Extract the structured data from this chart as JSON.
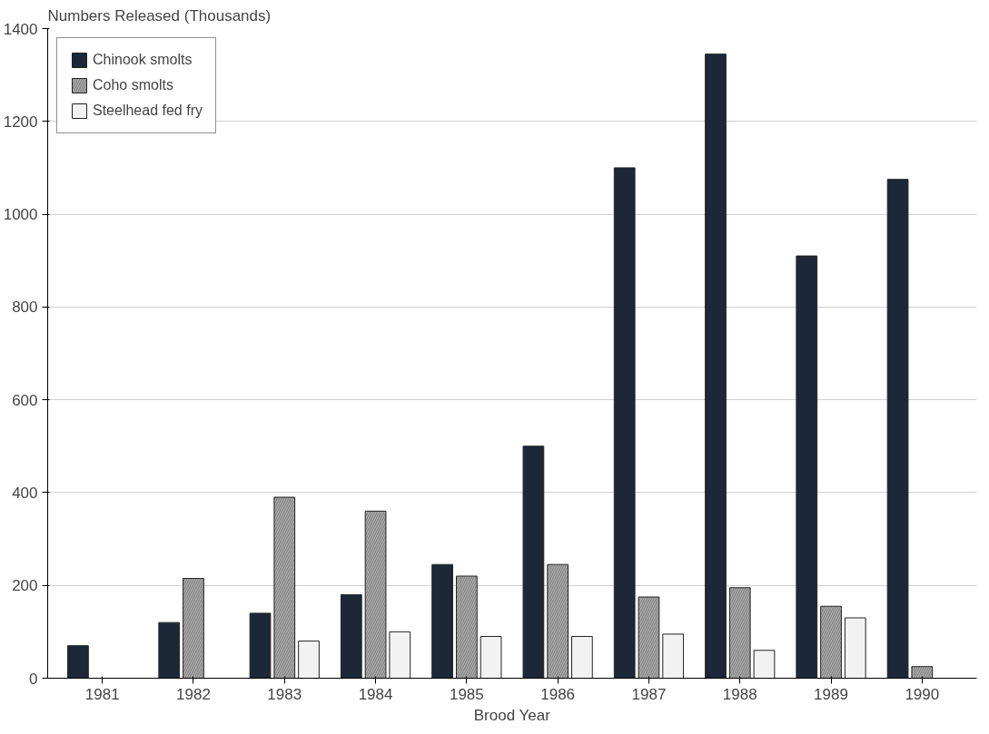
{
  "chart_data": {
    "type": "bar",
    "ylabel": "Numbers Released (Thousands)",
    "xlabel": "Brood Year",
    "categories": [
      "1981",
      "1982",
      "1983",
      "1984",
      "1985",
      "1986",
      "1987",
      "1988",
      "1989",
      "1990"
    ],
    "series": [
      {
        "name": "Chinook smolts",
        "color": "#1c2838",
        "values": [
          70,
          120,
          140,
          180,
          245,
          500,
          1100,
          1345,
          910,
          1075
        ]
      },
      {
        "name": "Coho smolts",
        "color": "#a8a8a8",
        "values": [
          null,
          215,
          390,
          360,
          220,
          245,
          175,
          195,
          155,
          25
        ]
      },
      {
        "name": "Steelhead fed fry",
        "color": "#f2f2f2",
        "values": [
          null,
          null,
          80,
          100,
          90,
          90,
          95,
          60,
          130,
          null
        ]
      }
    ],
    "ylim": [
      0,
      1400
    ],
    "yticks": [
      0,
      200,
      400,
      600,
      800,
      1000,
      1200,
      1400
    ],
    "grid": "y",
    "legend": "top left"
  }
}
